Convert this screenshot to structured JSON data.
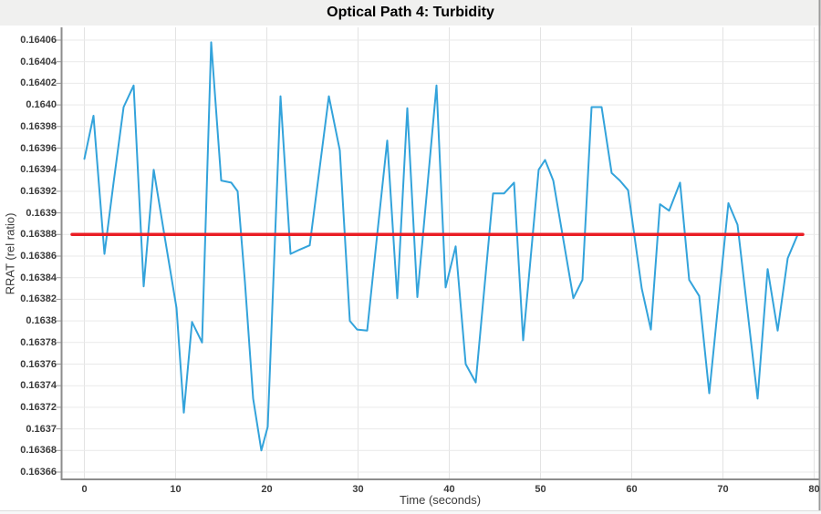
{
  "header": {
    "title": "Optical Path 4: Turbidity"
  },
  "chart_data": {
    "type": "line",
    "title": "Optical Path 4: Turbidity",
    "xlabel": "Time (seconds)",
    "ylabel": "RRAT (rel ratio)",
    "xlim": [
      -2.5,
      80.6
    ],
    "ylim": [
      0.163653,
      0.164072
    ],
    "grid": true,
    "legend_position": "none",
    "x_ticks": [
      0,
      10,
      20,
      30,
      40,
      50,
      60,
      70,
      80
    ],
    "y_ticks": [
      {
        "v": 0.16406,
        "label": "0.16406"
      },
      {
        "v": 0.16404,
        "label": "0.16404"
      },
      {
        "v": 0.16402,
        "label": "0.16402"
      },
      {
        "v": 0.164,
        "label": "0.1640"
      },
      {
        "v": 0.16398,
        "label": "0.16398"
      },
      {
        "v": 0.16396,
        "label": "0.16396"
      },
      {
        "v": 0.16394,
        "label": "0.16394"
      },
      {
        "v": 0.16392,
        "label": "0.16392"
      },
      {
        "v": 0.1639,
        "label": "0.1639"
      },
      {
        "v": 0.16388,
        "label": "0.16388"
      },
      {
        "v": 0.16386,
        "label": "0.16386"
      },
      {
        "v": 0.16384,
        "label": "0.16384"
      },
      {
        "v": 0.16382,
        "label": "0.16382"
      },
      {
        "v": 0.1638,
        "label": "0.1638"
      },
      {
        "v": 0.16378,
        "label": "0.16378"
      },
      {
        "v": 0.16376,
        "label": "0.16376"
      },
      {
        "v": 0.16374,
        "label": "0.16374"
      },
      {
        "v": 0.16372,
        "label": "0.16372"
      },
      {
        "v": 0.1637,
        "label": "0.1637"
      },
      {
        "v": 0.16368,
        "label": "0.16368"
      },
      {
        "v": 0.16366,
        "label": "0.16366"
      }
    ],
    "mean_line": {
      "value": 0.16388,
      "t_start": -1.35,
      "t_end": 78.75
    },
    "series": [
      {
        "name": "turbidity-rrat",
        "color": "#33a3db",
        "width": 2,
        "points": [
          [
            0.0,
            0.16395
          ],
          [
            1.0,
            0.16399
          ],
          [
            2.2,
            0.163862
          ],
          [
            3.2,
            0.163928
          ],
          [
            4.3,
            0.163998
          ],
          [
            5.4,
            0.164018
          ],
          [
            6.5,
            0.163832
          ],
          [
            7.6,
            0.16394
          ],
          [
            8.8,
            0.163878
          ],
          [
            10.1,
            0.163812
          ],
          [
            10.9,
            0.163715
          ],
          [
            11.8,
            0.163799
          ],
          [
            12.9,
            0.16378
          ],
          [
            13.9,
            0.164058
          ],
          [
            15.0,
            0.16393
          ],
          [
            16.1,
            0.163928
          ],
          [
            16.8,
            0.16392
          ],
          [
            17.6,
            0.163836
          ],
          [
            18.5,
            0.163728
          ],
          [
            19.4,
            0.16368
          ],
          [
            20.1,
            0.163702
          ],
          [
            21.5,
            0.164008
          ],
          [
            22.6,
            0.163862
          ],
          [
            23.6,
            0.163866
          ],
          [
            24.7,
            0.16387
          ],
          [
            25.8,
            0.163942
          ],
          [
            26.8,
            0.164008
          ],
          [
            28.0,
            0.163958
          ],
          [
            29.1,
            0.1638
          ],
          [
            29.9,
            0.163792
          ],
          [
            31.0,
            0.163791
          ],
          [
            32.1,
            0.16388
          ],
          [
            33.2,
            0.163967
          ],
          [
            34.3,
            0.163821
          ],
          [
            35.4,
            0.163997
          ],
          [
            36.5,
            0.163822
          ],
          [
            37.5,
            0.163915
          ],
          [
            38.6,
            0.164018
          ],
          [
            39.6,
            0.163831
          ],
          [
            40.7,
            0.163869
          ],
          [
            41.8,
            0.16376
          ],
          [
            42.9,
            0.163743
          ],
          [
            44.8,
            0.163918
          ],
          [
            46.0,
            0.163918
          ],
          [
            47.1,
            0.163928
          ],
          [
            48.1,
            0.163782
          ],
          [
            49.8,
            0.16394
          ],
          [
            50.5,
            0.163949
          ],
          [
            51.4,
            0.16393
          ],
          [
            53.6,
            0.163821
          ],
          [
            54.6,
            0.163838
          ],
          [
            55.6,
            0.163998
          ],
          [
            56.7,
            0.163998
          ],
          [
            57.8,
            0.163937
          ],
          [
            58.7,
            0.16393
          ],
          [
            59.6,
            0.163921
          ],
          [
            61.1,
            0.16383
          ],
          [
            62.1,
            0.163792
          ],
          [
            63.1,
            0.163908
          ],
          [
            64.1,
            0.163902
          ],
          [
            65.3,
            0.163928
          ],
          [
            66.3,
            0.163838
          ],
          [
            67.4,
            0.163823
          ],
          [
            68.5,
            0.163733
          ],
          [
            70.6,
            0.163909
          ],
          [
            71.6,
            0.163889
          ],
          [
            73.8,
            0.163728
          ],
          [
            74.9,
            0.163848
          ],
          [
            76.0,
            0.163791
          ],
          [
            77.1,
            0.163858
          ],
          [
            78.2,
            0.16388
          ]
        ]
      },
      {
        "name": "mean-line",
        "color": "#ea1e25",
        "width": 3.5,
        "points": [
          [
            -1.35,
            0.16388
          ],
          [
            78.75,
            0.16388
          ]
        ]
      }
    ],
    "colors": {
      "grid_h": "#e9e9e9",
      "grid_v": "#e3e3e3",
      "axis": "#8c8c8c",
      "tick": "#999999",
      "border_right": "#9a9a9a"
    }
  }
}
